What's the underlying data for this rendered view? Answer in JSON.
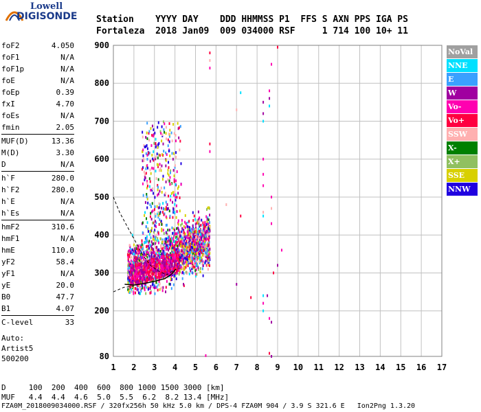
{
  "logo": {
    "line1": "Lowell",
    "line2": "DIGISONDE"
  },
  "header": {
    "labels": "Station    YYYY DAY    DDD HHMMSS P1  FFS S AXN PPS IGA PS",
    "values": "Fortaleza  2018 Jan09  009 034000 RSF     1 714 100 10+ 11"
  },
  "params": [
    {
      "name": "foF2",
      "value": "4.050"
    },
    {
      "name": "foF1",
      "value": "N/A"
    },
    {
      "name": "foF1p",
      "value": "N/A"
    },
    {
      "name": "foE",
      "value": "N/A"
    },
    {
      "name": "foEp",
      "value": "0.39"
    },
    {
      "name": "fxI",
      "value": "4.70"
    },
    {
      "name": "foEs",
      "value": "N/A"
    },
    {
      "name": "fmin",
      "value": "2.05"
    },
    {
      "name": "MUF(D)",
      "value": "13.36",
      "sep": true
    },
    {
      "name": "M(D)",
      "value": "3.30"
    },
    {
      "name": "D",
      "value": "N/A"
    },
    {
      "name": "h`F",
      "value": "280.0",
      "sep": true
    },
    {
      "name": "h`F2",
      "value": "280.0"
    },
    {
      "name": "h`E",
      "value": "N/A"
    },
    {
      "name": "h`Es",
      "value": "N/A"
    },
    {
      "name": "hmF2",
      "value": "310.6",
      "sep": true
    },
    {
      "name": "hmF1",
      "value": "N/A"
    },
    {
      "name": "hmE",
      "value": "110.0"
    },
    {
      "name": "yF2",
      "value": "58.4"
    },
    {
      "name": "yF1",
      "value": "N/A"
    },
    {
      "name": "yE",
      "value": "20.0"
    },
    {
      "name": "B0",
      "value": "47.7"
    },
    {
      "name": "B1",
      "value": "4.07"
    },
    {
      "name": "C-level",
      "value": "33",
      "sep": true
    }
  ],
  "auto": {
    "line1": "Auto:",
    "line2": "Artist5",
    "line3": "500200"
  },
  "legend": [
    {
      "label": "NoVal",
      "color": "#a0a0a0"
    },
    {
      "label": "NNE",
      "color": "#00e0ff"
    },
    {
      "label": "E",
      "color": "#3aa0ff"
    },
    {
      "label": "W",
      "color": "#a000a0"
    },
    {
      "label": "Vo-",
      "color": "#ff00b0"
    },
    {
      "label": "Vo+",
      "color": "#ff0040"
    },
    {
      "label": "SSW",
      "color": "#ffb0b0"
    },
    {
      "label": "X-",
      "color": "#008000"
    },
    {
      "label": "X+",
      "color": "#90c060"
    },
    {
      "label": "SSE",
      "color": "#d8d000"
    },
    {
      "label": "NNW",
      "color": "#2000e0"
    }
  ],
  "chart_data": {
    "type": "scatter",
    "xlim": [
      1,
      17
    ],
    "xticks": [
      1,
      2,
      3,
      4,
      5,
      6,
      7,
      8,
      9,
      10,
      11,
      12,
      13,
      14,
      15,
      16,
      17
    ],
    "ylim": [
      80,
      900
    ],
    "yticks": [
      80,
      200,
      300,
      400,
      500,
      600,
      700,
      800,
      900
    ],
    "grid": true,
    "profile_curve": [
      [
        1.55,
        270
      ],
      [
        2.0,
        268
      ],
      [
        2.5,
        272
      ],
      [
        3.0,
        278
      ],
      [
        3.5,
        285
      ],
      [
        3.8,
        295
      ],
      [
        4.05,
        310
      ]
    ],
    "dashed_curve": [
      [
        1.0,
        500
      ],
      [
        1.3,
        460
      ],
      [
        1.7,
        420
      ],
      [
        2.0,
        390
      ],
      [
        2.4,
        350
      ],
      [
        2.8,
        320
      ],
      [
        3.2,
        305
      ],
      [
        3.6,
        295
      ],
      [
        4.05,
        310
      ]
    ],
    "dashed_lower": [
      [
        1.0,
        250
      ],
      [
        1.5,
        262
      ],
      [
        2.0,
        265
      ]
    ],
    "seed": 12345
  },
  "bottom": {
    "line1": "D     100  200  400  600  800 1000 1500 3000 [km]",
    "line2": "MUF   4.4  4.4  4.6  5.0  5.5  6.2  8.2 13.4 [MHz]"
  },
  "footer": "FZA0M_2018009034000.RSF / 320fx256h 50 kHz 5.0 km / DPS-4 FZA0M 904 / 3.9 S 321.6 E   Ion2Png 1.3.20"
}
